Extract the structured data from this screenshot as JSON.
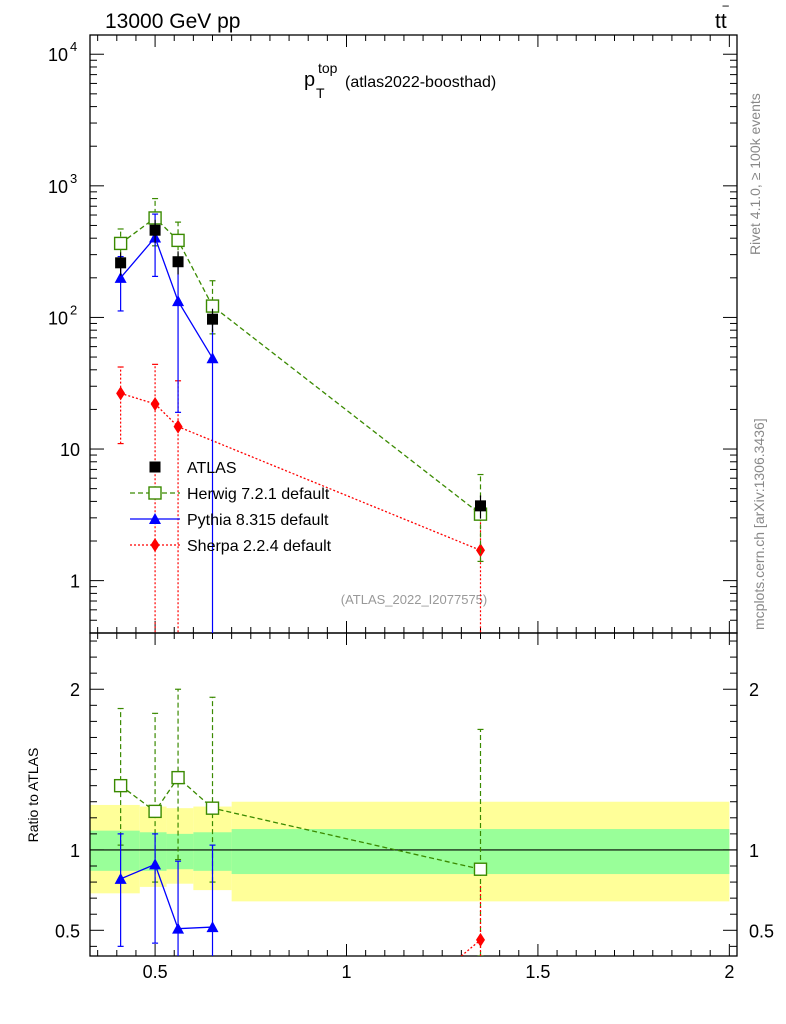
{
  "header": {
    "left": "13000 GeV pp",
    "right_text": "tt",
    "right_bar": "‾"
  },
  "title": {
    "main": "p",
    "sup": "top",
    "sub": "T",
    "tag": "(atlas2022-boosthad)"
  },
  "side_labels": {
    "rivet": "Rivet 4.1.0, ≥ 100k events",
    "mcplots": "mcplots.cern.ch [arXiv:1306.3436]"
  },
  "watermark": "(ATLAS_2022_I2077575)",
  "ratio_ylabel": "Ratio to ATLAS",
  "colors": {
    "atlas": "#000000",
    "herwig": "#3a8a00",
    "pythia": "#0000ff",
    "sherpa": "#ff0000",
    "band_inner": "#99ff99",
    "band_outer": "#ffff99"
  },
  "chart_data": {
    "type": "line",
    "xlim": [
      0.33,
      2.02
    ],
    "main": {
      "ylog": true,
      "ylim": [
        0.4,
        14000
      ],
      "yticks": [
        {
          "v": 1,
          "label": "1"
        },
        {
          "v": 10,
          "label": "10"
        },
        {
          "v": 100,
          "label": "10",
          "exp": "2"
        },
        {
          "v": 1000,
          "label": "10",
          "exp": "3"
        },
        {
          "v": 10000,
          "label": "10",
          "exp": "4"
        }
      ]
    },
    "ratio": {
      "ylim": [
        0.34,
        2.35
      ],
      "yticks": [
        {
          "v": 0.5,
          "label": "0.5"
        },
        {
          "v": 1,
          "label": "1"
        },
        {
          "v": 2,
          "label": "2"
        }
      ]
    },
    "xticks": [
      {
        "v": 0.5,
        "label": "0.5"
      },
      {
        "v": 1,
        "label": "1"
      },
      {
        "v": 1.5,
        "label": "1.5"
      },
      {
        "v": 2,
        "label": "2"
      }
    ],
    "legend": [
      {
        "key": "atlas",
        "label": "ATLAS"
      },
      {
        "key": "herwig",
        "label": "Herwig 7.2.1 default"
      },
      {
        "key": "pythia",
        "label": "Pythia 8.315 default"
      },
      {
        "key": "sherpa",
        "label": "Sherpa 2.2.4 default"
      }
    ],
    "atlas": {
      "x": [
        0.41,
        0.5,
        0.56,
        0.65,
        1.35
      ],
      "y": [
        260,
        460,
        265,
        97,
        3.7
      ],
      "err": [
        0.2,
        0.2,
        0.2,
        0.2,
        0.2
      ]
    },
    "herwig": {
      "x": [
        0.41,
        0.5,
        0.56,
        0.65,
        1.35
      ],
      "y": [
        365,
        570,
        385,
        122,
        3.2
      ],
      "lo": [
        270,
        350,
        245,
        75,
        1.4
      ],
      "hi": [
        470,
        800,
        530,
        190,
        6.4
      ]
    },
    "pythia": {
      "x": [
        0.41,
        0.5,
        0.56,
        0.65
      ],
      "y": [
        200,
        405,
        133,
        49
      ],
      "lo": [
        112,
        205,
        19,
        0.1
      ],
      "hi": [
        290,
        610,
        245,
        100
      ]
    },
    "sherpa": {
      "x": [
        0.41,
        0.5,
        0.56,
        1.35
      ],
      "y": [
        26.5,
        22,
        14.8,
        1.7
      ],
      "lo": [
        11,
        0.1,
        0.1,
        0.1
      ],
      "hi": [
        42,
        44,
        33,
        3.6
      ]
    },
    "ratio_series": {
      "herwig": {
        "y": [
          1.4,
          1.24,
          1.45,
          1.26,
          0.88
        ],
        "lo": [
          1.03,
          0.8,
          0.94,
          0.8,
          0.34
        ],
        "hi": [
          1.88,
          1.85,
          2.0,
          1.95,
          1.75
        ]
      },
      "pythia": {
        "y": [
          0.82,
          0.91,
          0.51,
          0.52
        ],
        "lo": [
          0.4,
          0.42,
          0.3,
          0.3
        ],
        "hi": [
          1.1,
          1.1,
          0.93,
          1.03
        ]
      },
      "sherpa": {
        "x": [
          1.35
        ],
        "y": [
          0.44
        ],
        "lo": [
          0.3
        ],
        "hi": [
          0.56
        ]
      }
    },
    "bands": [
      {
        "x0": 0.33,
        "x1": 0.46,
        "in_lo": 0.87,
        "in_hi": 1.12,
        "out_lo": 0.73,
        "out_hi": 1.28
      },
      {
        "x0": 0.46,
        "x1": 0.53,
        "in_lo": 0.87,
        "in_hi": 1.11,
        "out_lo": 0.77,
        "out_hi": 1.27
      },
      {
        "x0": 0.53,
        "x1": 0.6,
        "in_lo": 0.88,
        "in_hi": 1.1,
        "out_lo": 0.79,
        "out_hi": 1.26
      },
      {
        "x0": 0.6,
        "x1": 0.7,
        "in_lo": 0.87,
        "in_hi": 1.11,
        "out_lo": 0.75,
        "out_hi": 1.27
      },
      {
        "x0": 0.7,
        "x1": 2.0,
        "in_lo": 0.85,
        "in_hi": 1.13,
        "out_lo": 0.68,
        "out_hi": 1.3
      }
    ]
  }
}
